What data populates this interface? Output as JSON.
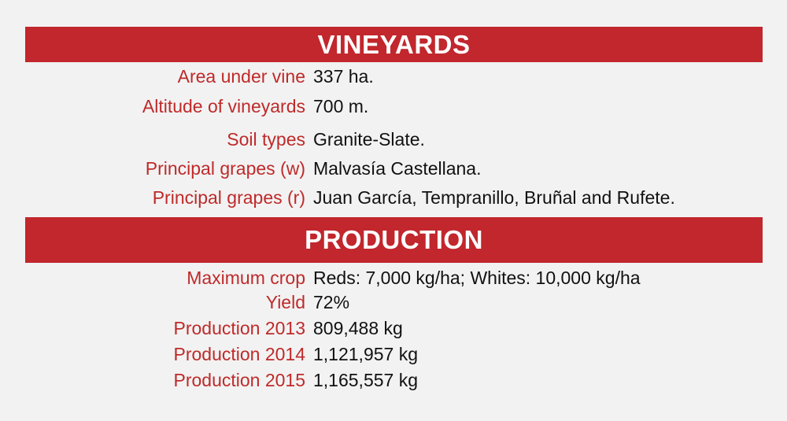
{
  "vineyards": {
    "title": "VINEYARDS",
    "rows": [
      {
        "label": "Area under vine",
        "value": "337 ha."
      },
      {
        "label": "Altitude of vineyards",
        "value": "700 m."
      },
      {
        "label": "Soil types",
        "value": "Granite-Slate."
      },
      {
        "label": "Principal grapes (w)",
        "value": "Malvasía Castellana."
      },
      {
        "label": "Principal grapes (r)",
        "value": "Juan García, Tempranillo, Bruñal and Rufete."
      }
    ]
  },
  "production": {
    "title": "PRODUCTION",
    "rows": [
      {
        "label": "Maximum crop",
        "value": "Reds: 7,000 kg/ha; Whites: 10,000 kg/ha"
      },
      {
        "label": "Yield",
        "value": "72%"
      },
      {
        "label": "Production 2013",
        "value": "809,488 kg"
      },
      {
        "label": "Production 2014",
        "value": "1,121,957 kg"
      },
      {
        "label": "Production 2015",
        "value": "1,165,557 kg"
      }
    ]
  }
}
